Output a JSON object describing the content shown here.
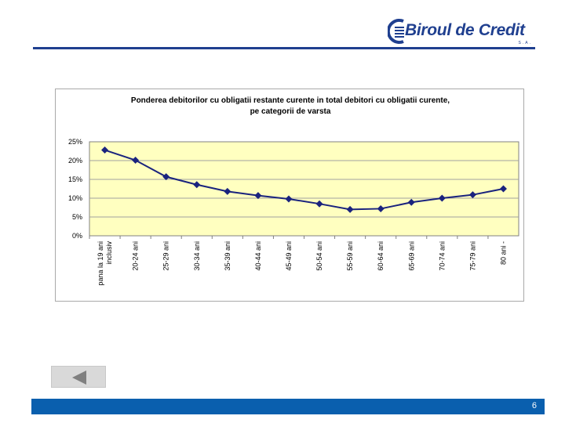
{
  "logo": {
    "text": "Biroul de Credit",
    "suffix": "S.A."
  },
  "colors": {
    "brand": "#1f3f8f",
    "footer": "#0a5fae",
    "plot_background": "#ffffc0",
    "line": "#1a237e"
  },
  "chart_data": {
    "type": "line",
    "title_line1": "Ponderea debitorilor cu obligatii restante curente in total debitori cu obligatii curente,",
    "title_line2": "pe categorii de varsta",
    "categories": [
      [
        "pana la 19 ani",
        "inclusiv"
      ],
      [
        "20-24 ani"
      ],
      [
        "25-29 ani"
      ],
      [
        "30-34 ani"
      ],
      [
        "35-39 ani"
      ],
      [
        "40-44 ani"
      ],
      [
        "45-49 ani"
      ],
      [
        "50-54 ani"
      ],
      [
        "55-59 ani"
      ],
      [
        "60-64 ani"
      ],
      [
        "65-69 ani"
      ],
      [
        "70-74 ani"
      ],
      [
        "75-79 ani"
      ],
      [
        "80 ani -"
      ]
    ],
    "values": [
      22.8,
      20.1,
      15.7,
      13.6,
      11.8,
      10.7,
      9.8,
      8.5,
      7.0,
      7.2,
      8.9,
      10.0,
      10.9,
      12.5
    ],
    "y_ticks": [
      "0%",
      "5%",
      "10%",
      "15%",
      "20%",
      "25%"
    ],
    "ylim": [
      0,
      25
    ],
    "y_unit": "%",
    "grid": true,
    "legend": "none"
  },
  "footer": {
    "page_number": "6"
  },
  "nav": {
    "back_icon": "left-triangle-icon"
  }
}
